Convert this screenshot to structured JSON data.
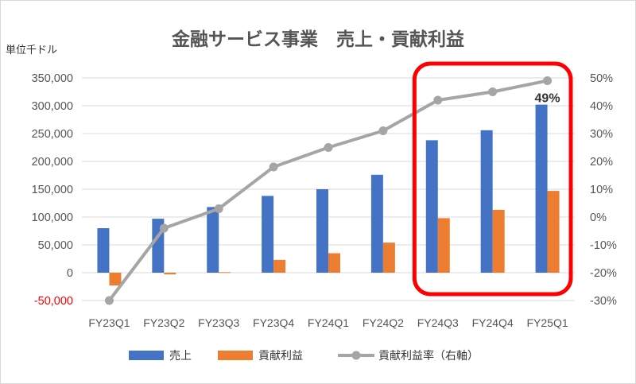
{
  "chart_data": {
    "type": "bar",
    "title": "金融サービス事業　売上・貢献利益",
    "y_unit_label": "単位千ドル",
    "categories": [
      "FY23Q1",
      "FY23Q2",
      "FY23Q3",
      "FY23Q4",
      "FY24Q1",
      "FY24Q2",
      "FY24Q3",
      "FY24Q4",
      "FY25Q1"
    ],
    "ylim": [
      -50000,
      350000
    ],
    "y_ticks": [
      "350,000",
      "300,000",
      "250,000",
      "200,000",
      "150,000",
      "100,000",
      "50,000",
      "0",
      "-50,000"
    ],
    "y_tick_values": [
      350000,
      300000,
      250000,
      200000,
      150000,
      100000,
      50000,
      0,
      -50000
    ],
    "y2lim": [
      -30,
      50
    ],
    "y2_ticks": [
      "50%",
      "40%",
      "30%",
      "20%",
      "10%",
      "0%",
      "-10%",
      "-20%",
      "-30%"
    ],
    "y2_tick_values": [
      50,
      40,
      30,
      20,
      10,
      0,
      -10,
      -20,
      -30
    ],
    "series": [
      {
        "name": "売上",
        "kind": "bar",
        "axis": "left",
        "color": "#4472c4",
        "values": [
          80000,
          97000,
          118000,
          138000,
          150000,
          176000,
          238000,
          256000,
          302000
        ]
      },
      {
        "name": "貢献利益",
        "kind": "bar",
        "axis": "left",
        "color": "#ed7d31",
        "values": [
          -23000,
          -3000,
          1000,
          23000,
          35000,
          54000,
          98000,
          113000,
          147000
        ]
      },
      {
        "name": "貢献利益率（右軸）",
        "kind": "line",
        "axis": "right",
        "color": "#a5a5a5",
        "unit": "%",
        "values": [
          -30,
          -4,
          3,
          18,
          25,
          31,
          42,
          45,
          49
        ]
      }
    ],
    "data_labels": [
      {
        "series": 2,
        "index": 8,
        "text": "49%"
      }
    ],
    "highlight": {
      "from_index": 6,
      "to_index": 8,
      "color": "#ff0000"
    },
    "grid": true,
    "legend_position": "bottom"
  }
}
